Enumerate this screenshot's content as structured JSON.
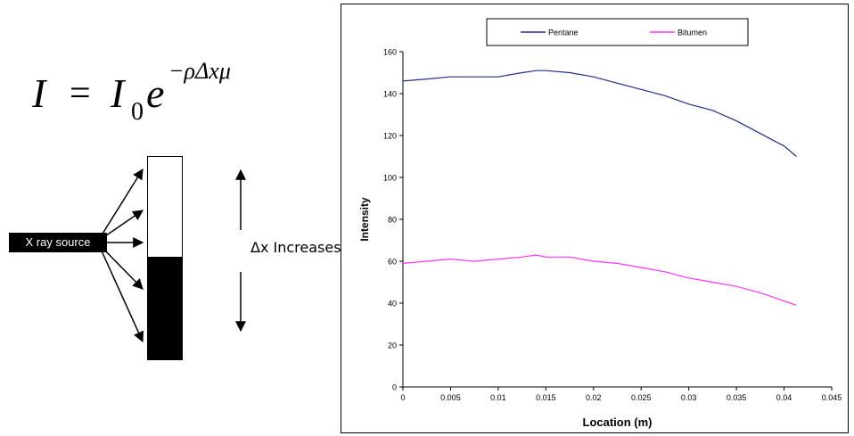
{
  "illustration": {
    "formula_I": "I",
    "formula_eq": "=",
    "formula_I0": "I",
    "formula_sub0": "0",
    "formula_e": "e",
    "formula_exponent": "−ρΔxμ",
    "source_label": "X ray source",
    "dx_label": "Δx Increases"
  },
  "chart_data": {
    "type": "line",
    "xlabel": "Location (m)",
    "ylabel": "Intensity",
    "xlim": [
      0,
      0.045
    ],
    "ylim": [
      0,
      160
    ],
    "x_ticks": [
      0,
      0.005,
      0.01,
      0.015,
      0.02,
      0.025,
      0.03,
      0.035,
      0.04,
      0.045
    ],
    "x_tick_labels": [
      "0",
      "0.005",
      "0.01",
      "0.015",
      "0.02",
      "0.025",
      "0.03",
      "0.035",
      "0.04",
      "0.045"
    ],
    "y_ticks": [
      0,
      20,
      40,
      60,
      80,
      100,
      120,
      140,
      160
    ],
    "y_tick_labels": [
      "0",
      "20",
      "40",
      "60",
      "80",
      "100",
      "120",
      "140",
      "160"
    ],
    "grid": false,
    "legend_position": "top",
    "series": [
      {
        "name": "Pentane",
        "color": "#1f2f8f",
        "x": [
          0,
          0.0025,
          0.005,
          0.0075,
          0.01,
          0.0125,
          0.014,
          0.015,
          0.0175,
          0.02,
          0.0225,
          0.025,
          0.0275,
          0.03,
          0.0325,
          0.035,
          0.0375,
          0.04,
          0.0413
        ],
        "y": [
          146,
          147,
          148,
          148,
          148,
          150,
          151,
          151,
          150,
          148,
          145,
          142,
          139,
          135,
          132,
          127,
          121,
          115,
          110
        ]
      },
      {
        "name": "Bitumen",
        "color": "#ff33ff",
        "x": [
          0,
          0.0025,
          0.005,
          0.0075,
          0.01,
          0.0125,
          0.014,
          0.015,
          0.0175,
          0.02,
          0.0225,
          0.025,
          0.0275,
          0.03,
          0.0325,
          0.035,
          0.0375,
          0.04,
          0.0413
        ],
        "y": [
          59,
          60,
          61,
          60,
          61,
          62,
          63,
          62,
          62,
          60,
          59,
          57,
          55,
          52,
          50,
          48,
          45,
          41,
          39
        ]
      }
    ]
  }
}
